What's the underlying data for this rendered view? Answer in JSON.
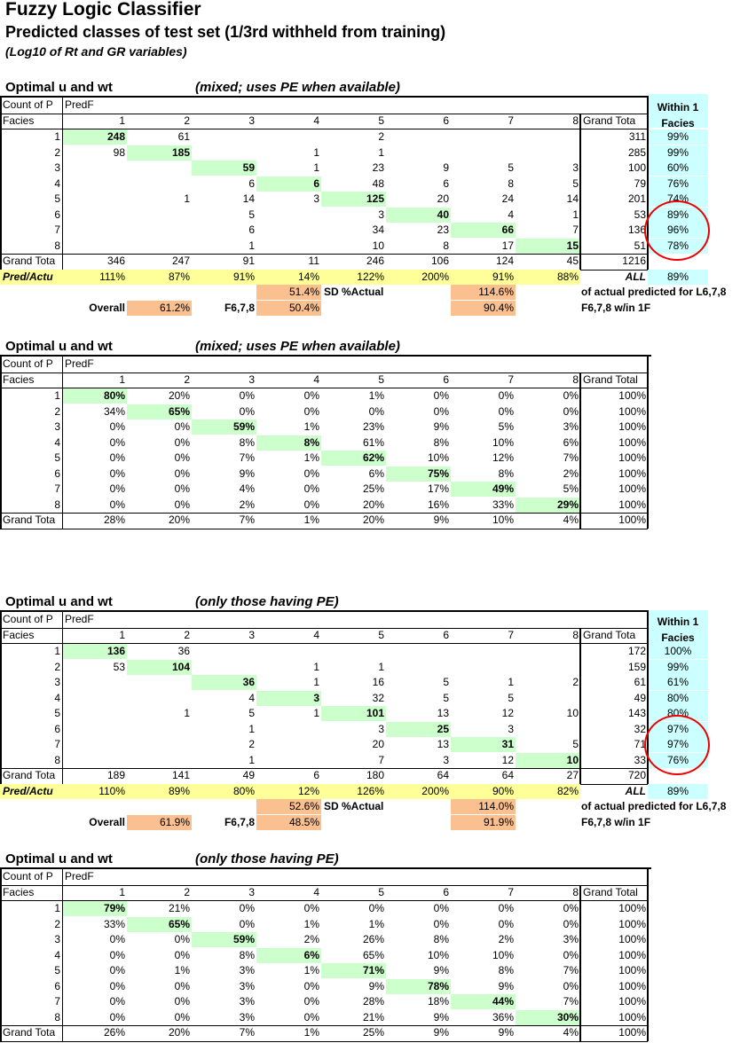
{
  "title": "Fuzzy Logic Classifier",
  "subtitle": "Predicted classes of test set (1/3rd withheld from training)",
  "subtitle2": "(Log10 of Rt and GR variables)",
  "common": {
    "optimal": "Optimal u and wt",
    "count_of": "Count of P",
    "predf": "PredF",
    "facies": "Facies",
    "grand_total_col": "Grand Total",
    "grand_total_col_short": "Grand Tota",
    "grand_total_row": "Grand Tota",
    "pred_actual": "Pred/Actu",
    "all": "ALL",
    "within1_a": "Within 1",
    "within1_b": "Facies",
    "overall": "Overall",
    "f678": "F6,7,8",
    "sd_actual": "SD %Actual",
    "of_actual": "of actual predicted for L6,7,8",
    "within_1f": "F6,7,8 w/in 1F",
    "col_headers": [
      "1",
      "2",
      "3",
      "4",
      "5",
      "6",
      "7",
      "8"
    ]
  },
  "panels": [
    {
      "subtitle": "(mixed; uses PE when available)",
      "kind": "counts",
      "rows": [
        {
          "f": "1",
          "v": [
            "248",
            "61",
            "",
            "",
            "2",
            "",
            "",
            ""
          ],
          "gt": "311",
          "w": "99%"
        },
        {
          "f": "2",
          "v": [
            "98",
            "185",
            "",
            "1",
            "1",
            "",
            "",
            ""
          ],
          "gt": "285",
          "w": "99%"
        },
        {
          "f": "3",
          "v": [
            "",
            "",
            "59",
            "1",
            "23",
            "9",
            "5",
            "3"
          ],
          "gt": "100",
          "w": "60%"
        },
        {
          "f": "4",
          "v": [
            "",
            "",
            "6",
            "6",
            "48",
            "6",
            "8",
            "5"
          ],
          "gt": "79",
          "w": "76%"
        },
        {
          "f": "5",
          "v": [
            "",
            "1",
            "14",
            "3",
            "125",
            "20",
            "24",
            "14"
          ],
          "gt": "201",
          "w": "74%"
        },
        {
          "f": "6",
          "v": [
            "",
            "",
            "5",
            "",
            "3",
            "40",
            "4",
            "1"
          ],
          "gt": "53",
          "w": "89%"
        },
        {
          "f": "7",
          "v": [
            "",
            "",
            "6",
            "",
            "34",
            "23",
            "66",
            "7"
          ],
          "gt": "136",
          "w": "96%"
        },
        {
          "f": "8",
          "v": [
            "",
            "",
            "1",
            "",
            "10",
            "8",
            "17",
            "15"
          ],
          "gt": "51",
          "w": "78%"
        }
      ],
      "total": [
        "346",
        "247",
        "91",
        "11",
        "246",
        "106",
        "124",
        "45"
      ],
      "total_gt": "1216",
      "pred": [
        "111%",
        "87%",
        "91%",
        "14%",
        "122%",
        "200%",
        "91%",
        "88%"
      ],
      "pred_w": "89%",
      "sd": "51.4%",
      "overall": "61.2%",
      "f678": "50.4%",
      "of_actual": "114.6%",
      "within_1f": "90.4%"
    },
    {
      "subtitle": "(mixed; uses PE when available)",
      "kind": "pct",
      "rows": [
        {
          "f": "1",
          "v": [
            "80%",
            "20%",
            "0%",
            "0%",
            "1%",
            "0%",
            "0%",
            "0%"
          ],
          "gt": "100%"
        },
        {
          "f": "2",
          "v": [
            "34%",
            "65%",
            "0%",
            "0%",
            "0%",
            "0%",
            "0%",
            "0%"
          ],
          "gt": "100%"
        },
        {
          "f": "3",
          "v": [
            "0%",
            "0%",
            "59%",
            "1%",
            "23%",
            "9%",
            "5%",
            "3%"
          ],
          "gt": "100%"
        },
        {
          "f": "4",
          "v": [
            "0%",
            "0%",
            "8%",
            "8%",
            "61%",
            "8%",
            "10%",
            "6%"
          ],
          "gt": "100%"
        },
        {
          "f": "5",
          "v": [
            "0%",
            "0%",
            "7%",
            "1%",
            "62%",
            "10%",
            "12%",
            "7%"
          ],
          "gt": "100%"
        },
        {
          "f": "6",
          "v": [
            "0%",
            "0%",
            "9%",
            "0%",
            "6%",
            "75%",
            "8%",
            "2%"
          ],
          "gt": "100%"
        },
        {
          "f": "7",
          "v": [
            "0%",
            "0%",
            "4%",
            "0%",
            "25%",
            "17%",
            "49%",
            "5%"
          ],
          "gt": "100%"
        },
        {
          "f": "8",
          "v": [
            "0%",
            "0%",
            "2%",
            "0%",
            "20%",
            "16%",
            "33%",
            "29%"
          ],
          "gt": "100%"
        }
      ],
      "total": [
        "28%",
        "20%",
        "7%",
        "1%",
        "20%",
        "9%",
        "10%",
        "4%"
      ],
      "total_gt": "100%"
    },
    {
      "subtitle": "(only those having PE)",
      "kind": "counts",
      "rows": [
        {
          "f": "1",
          "v": [
            "136",
            "36",
            "",
            "",
            "",
            "",
            "",
            ""
          ],
          "gt": "172",
          "w": "100%"
        },
        {
          "f": "2",
          "v": [
            "53",
            "104",
            "",
            "1",
            "1",
            "",
            "",
            ""
          ],
          "gt": "159",
          "w": "99%"
        },
        {
          "f": "3",
          "v": [
            "",
            "",
            "36",
            "1",
            "16",
            "5",
            "1",
            "2"
          ],
          "gt": "61",
          "w": "61%"
        },
        {
          "f": "4",
          "v": [
            "",
            "",
            "4",
            "3",
            "32",
            "5",
            "5",
            ""
          ],
          "gt": "49",
          "w": "80%"
        },
        {
          "f": "5",
          "v": [
            "",
            "1",
            "5",
            "1",
            "101",
            "13",
            "12",
            "10"
          ],
          "gt": "143",
          "w": "80%"
        },
        {
          "f": "6",
          "v": [
            "",
            "",
            "1",
            "",
            "3",
            "25",
            "3",
            ""
          ],
          "gt": "32",
          "w": "97%"
        },
        {
          "f": "7",
          "v": [
            "",
            "",
            "2",
            "",
            "20",
            "13",
            "31",
            "5"
          ],
          "gt": "71",
          "w": "97%"
        },
        {
          "f": "8",
          "v": [
            "",
            "",
            "1",
            "",
            "7",
            "3",
            "12",
            "10"
          ],
          "gt": "33",
          "w": "76%"
        }
      ],
      "total": [
        "189",
        "141",
        "49",
        "6",
        "180",
        "64",
        "64",
        "27"
      ],
      "total_gt": "720",
      "pred": [
        "110%",
        "89%",
        "80%",
        "12%",
        "126%",
        "200%",
        "90%",
        "82%"
      ],
      "pred_w": "89%",
      "sd": "52.6%",
      "overall": "61.9%",
      "f678": "48.5%",
      "of_actual": "114.0%",
      "within_1f": "91.9%"
    },
    {
      "subtitle": "(only those having PE)",
      "kind": "pct",
      "rows": [
        {
          "f": "1",
          "v": [
            "79%",
            "21%",
            "0%",
            "0%",
            "0%",
            "0%",
            "0%",
            "0%"
          ],
          "gt": "100%"
        },
        {
          "f": "2",
          "v": [
            "33%",
            "65%",
            "0%",
            "1%",
            "1%",
            "0%",
            "0%",
            "0%"
          ],
          "gt": "100%"
        },
        {
          "f": "3",
          "v": [
            "0%",
            "0%",
            "59%",
            "2%",
            "26%",
            "8%",
            "2%",
            "3%"
          ],
          "gt": "100%"
        },
        {
          "f": "4",
          "v": [
            "0%",
            "0%",
            "8%",
            "6%",
            "65%",
            "10%",
            "10%",
            "0%"
          ],
          "gt": "100%"
        },
        {
          "f": "5",
          "v": [
            "0%",
            "1%",
            "3%",
            "1%",
            "71%",
            "9%",
            "8%",
            "7%"
          ],
          "gt": "100%"
        },
        {
          "f": "6",
          "v": [
            "0%",
            "0%",
            "3%",
            "0%",
            "9%",
            "78%",
            "9%",
            "0%"
          ],
          "gt": "100%"
        },
        {
          "f": "7",
          "v": [
            "0%",
            "0%",
            "3%",
            "0%",
            "28%",
            "18%",
            "44%",
            "7%"
          ],
          "gt": "100%"
        },
        {
          "f": "8",
          "v": [
            "0%",
            "0%",
            "3%",
            "0%",
            "21%",
            "9%",
            "36%",
            "30%"
          ],
          "gt": "100%"
        }
      ],
      "total": [
        "26%",
        "20%",
        "7%",
        "1%",
        "25%",
        "9%",
        "9%",
        "4%"
      ],
      "total_gt": "100%"
    }
  ]
}
